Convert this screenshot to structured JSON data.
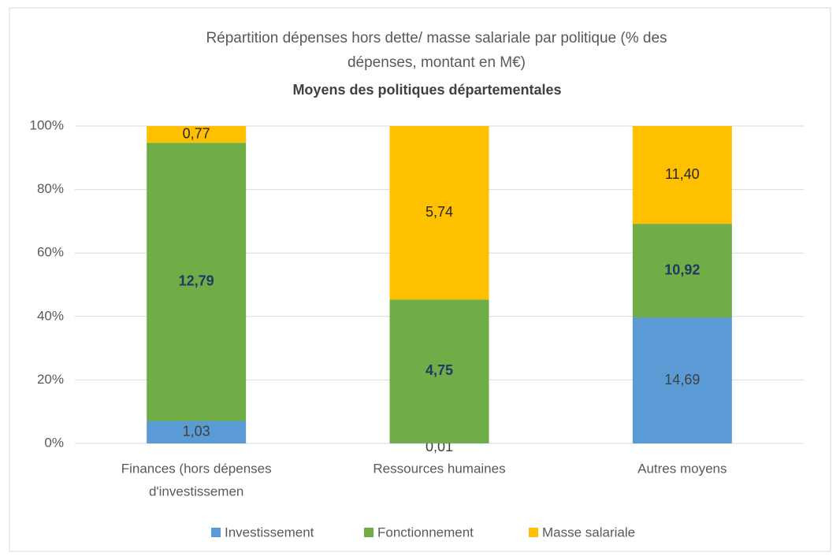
{
  "chart_data": {
    "type": "bar",
    "stacking": "percent",
    "title": [
      "Répartition dépenses hors dette/ masse salariale par politique (% des",
      "dépenses, montant en M€)"
    ],
    "subtitle": "Moyens des politiques départementales",
    "categories": [
      [
        "Finances (hors dépenses",
        "d'investissemen"
      ],
      [
        "Ressources humaines"
      ],
      [
        "Autres moyens"
      ]
    ],
    "series": [
      {
        "name": "Investissement",
        "color": "#5b9bd5",
        "label_color": "#404040",
        "label_bold": false,
        "values": [
          1.03,
          0.01,
          14.69
        ],
        "value_labels": [
          "1,03",
          "0,01",
          "14,69"
        ]
      },
      {
        "name": "Fonctionnement",
        "color": "#70ad47",
        "label_color": "#203864",
        "label_bold": true,
        "values": [
          12.79,
          4.75,
          10.92
        ],
        "value_labels": [
          "12,79",
          "4,75",
          "10,92"
        ]
      },
      {
        "name": "Masse salariale",
        "color": "#ffc000",
        "label_color": "#262626",
        "label_bold": false,
        "values": [
          0.77,
          5.74,
          11.4
        ],
        "value_labels": [
          "0,77",
          "5,74",
          "11,40"
        ]
      }
    ],
    "ylim": [
      0,
      100
    ],
    "yticks": [
      {
        "value": 0,
        "label": "0%"
      },
      {
        "value": 20,
        "label": "20%"
      },
      {
        "value": 40,
        "label": "40%"
      },
      {
        "value": 60,
        "label": "60%"
      },
      {
        "value": 80,
        "label": "80%"
      },
      {
        "value": 100,
        "label": "100%"
      }
    ],
    "grid": true,
    "legend": "bottom"
  }
}
